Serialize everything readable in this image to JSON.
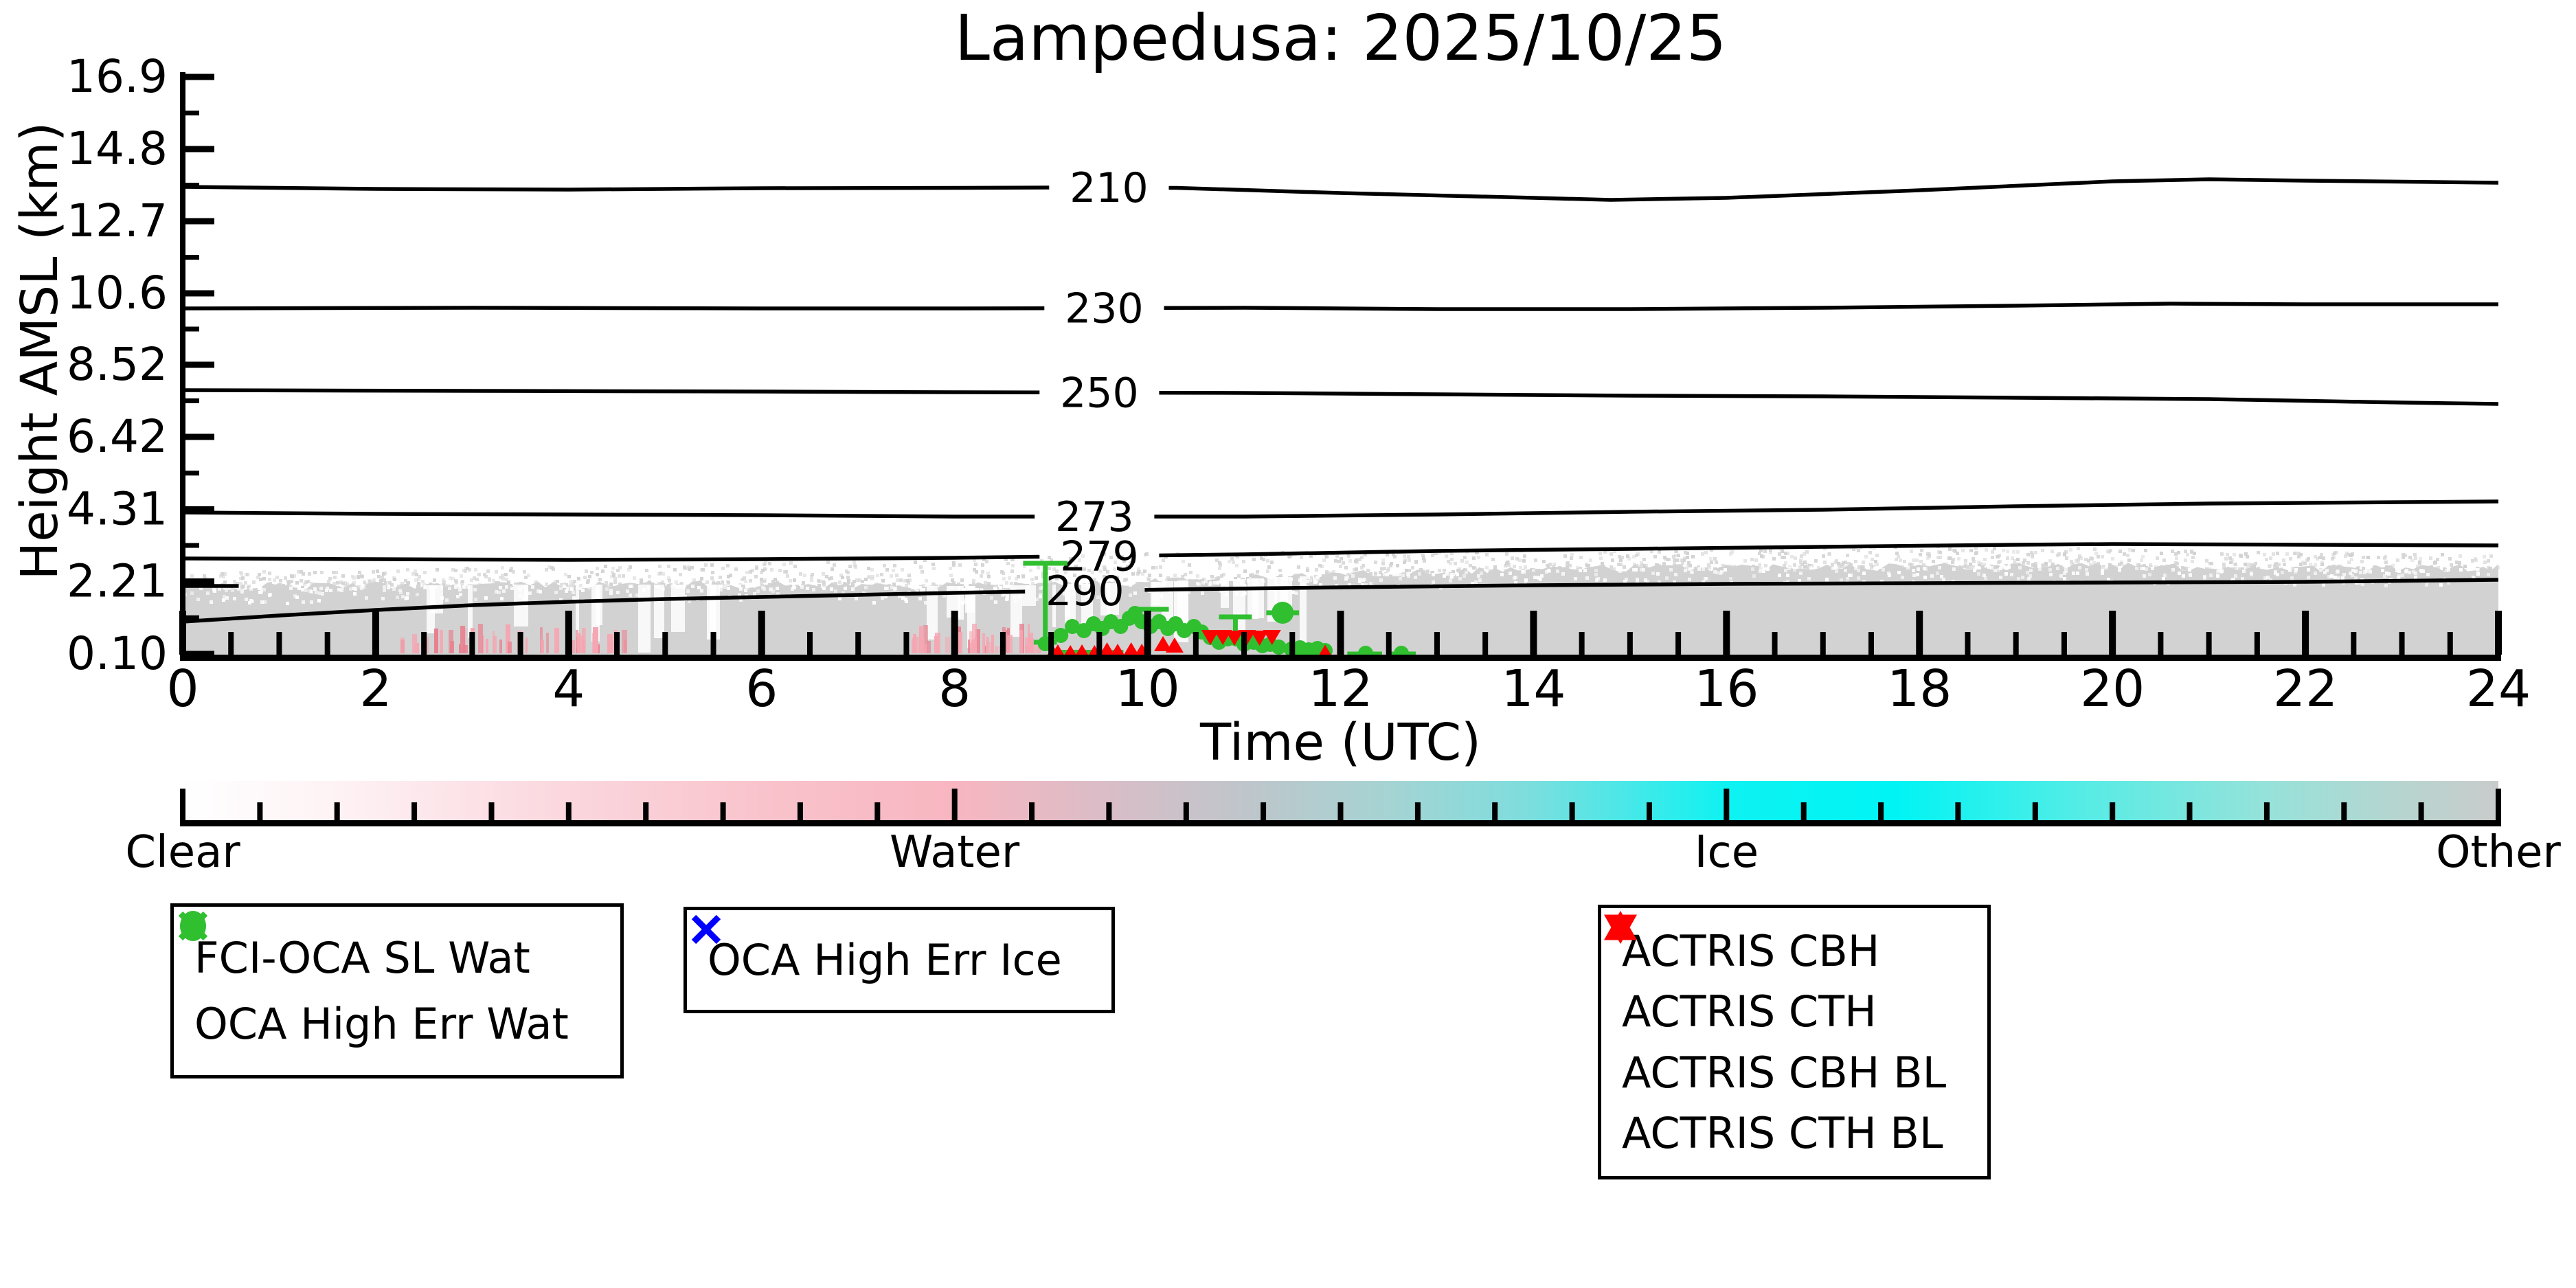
{
  "title": "Lampedusa: 2025/10/25",
  "axis": {
    "xlabel": "Time (UTC)",
    "ylabel": "Height AMSL (km)",
    "x_major_ticks": [
      0,
      2,
      4,
      6,
      8,
      10,
      12,
      14,
      16,
      18,
      20,
      22,
      24
    ],
    "x_minor_step": 0.5,
    "y_ticks": [
      {
        "label": "16.9",
        "km": 16.9
      },
      {
        "label": "14.8",
        "km": 14.8
      },
      {
        "label": "12.7",
        "km": 12.7
      },
      {
        "label": "10.6",
        "km": 10.6
      },
      {
        "label": "8.52",
        "km": 8.52
      },
      {
        "label": "6.42",
        "km": 6.42
      },
      {
        "label": "4.31",
        "km": 4.31
      },
      {
        "label": "2.21",
        "km": 2.21
      },
      {
        "label": "0.10",
        "km": 0.1
      }
    ]
  },
  "chart_data": {
    "type": "scatter",
    "title": "Lampedusa: 2025/10/25",
    "xlabel": "Time (UTC)",
    "ylabel": "Height AMSL (km)",
    "xlim": [
      0,
      24
    ],
    "ylim": [
      0.1,
      16.9
    ],
    "grid": false,
    "temperature_contours_K": [
      {
        "level": "210",
        "label_t": 9.6,
        "points": [
          [
            0,
            13.7
          ],
          [
            2,
            13.64
          ],
          [
            4,
            13.62
          ],
          [
            6,
            13.66
          ],
          [
            8,
            13.67
          ],
          [
            9.0,
            13.68
          ],
          [
            10.3,
            13.67
          ],
          [
            12,
            13.52
          ],
          [
            14,
            13.38
          ],
          [
            14.8,
            13.32
          ],
          [
            16,
            13.38
          ],
          [
            18,
            13.6
          ],
          [
            20,
            13.86
          ],
          [
            21,
            13.92
          ],
          [
            22,
            13.88
          ],
          [
            24,
            13.82
          ]
        ]
      },
      {
        "level": "230",
        "label_t": 9.55,
        "points": [
          [
            0,
            10.16
          ],
          [
            3,
            10.18
          ],
          [
            6,
            10.16
          ],
          [
            8,
            10.16
          ],
          [
            11,
            10.18
          ],
          [
            13,
            10.14
          ],
          [
            15,
            10.14
          ],
          [
            17,
            10.18
          ],
          [
            19,
            10.24
          ],
          [
            20.6,
            10.3
          ],
          [
            22,
            10.28
          ],
          [
            24,
            10.28
          ]
        ]
      },
      {
        "level": "250",
        "label_t": 9.5,
        "points": [
          [
            0,
            7.78
          ],
          [
            3,
            7.76
          ],
          [
            6,
            7.74
          ],
          [
            8,
            7.72
          ],
          [
            11,
            7.7
          ],
          [
            13,
            7.66
          ],
          [
            15,
            7.62
          ],
          [
            17,
            7.6
          ],
          [
            19,
            7.56
          ],
          [
            21,
            7.52
          ],
          [
            23,
            7.42
          ],
          [
            24,
            7.38
          ]
        ]
      },
      {
        "level": "273",
        "label_t": 9.45,
        "points": [
          [
            0,
            4.22
          ],
          [
            2,
            4.18
          ],
          [
            4,
            4.16
          ],
          [
            6,
            4.14
          ],
          [
            8,
            4.1
          ],
          [
            11,
            4.1
          ],
          [
            13,
            4.16
          ],
          [
            15,
            4.24
          ],
          [
            17,
            4.3
          ],
          [
            19,
            4.4
          ],
          [
            21,
            4.48
          ],
          [
            23,
            4.52
          ],
          [
            24,
            4.54
          ]
        ]
      },
      {
        "level": "279",
        "label_t": 9.5,
        "points": [
          [
            0,
            2.88
          ],
          [
            2,
            2.86
          ],
          [
            4,
            2.84
          ],
          [
            6,
            2.86
          ],
          [
            8,
            2.9
          ],
          [
            11,
            3.0
          ],
          [
            13,
            3.1
          ],
          [
            15,
            3.16
          ],
          [
            17,
            3.22
          ],
          [
            19,
            3.28
          ],
          [
            20,
            3.3
          ],
          [
            22,
            3.28
          ],
          [
            24,
            3.26
          ]
        ]
      },
      {
        "level": "290",
        "label_t": 9.35,
        "points": [
          [
            0,
            1.04
          ],
          [
            1,
            1.22
          ],
          [
            2,
            1.38
          ],
          [
            3,
            1.52
          ],
          [
            4,
            1.62
          ],
          [
            5,
            1.7
          ],
          [
            6,
            1.76
          ],
          [
            7,
            1.82
          ],
          [
            8,
            1.88
          ],
          [
            8.8,
            1.92
          ],
          [
            10.3,
            1.98
          ],
          [
            12,
            2.04
          ],
          [
            14,
            2.1
          ],
          [
            16,
            2.14
          ],
          [
            18,
            2.16
          ],
          [
            20,
            2.18
          ],
          [
            22,
            2.2
          ],
          [
            24,
            2.26
          ]
        ]
      },
      {
        "level": "",
        "label_t": null,
        "points": [
          [
            0,
            2.08
          ],
          [
            0.58,
            2.08
          ]
        ]
      }
    ],
    "classification_field": {
      "fill_color": "#d2d2d2",
      "water_color": "#f5a6b2",
      "solid_top_km": [
        [
          0,
          2.05
        ],
        [
          2,
          2.1
        ],
        [
          4,
          2.12
        ],
        [
          6,
          2.12
        ],
        [
          8,
          2.08
        ],
        [
          9,
          2.12
        ],
        [
          10,
          2.2
        ],
        [
          11,
          2.3
        ],
        [
          12,
          2.42
        ],
        [
          13,
          2.52
        ],
        [
          14,
          2.58
        ],
        [
          15,
          2.6
        ],
        [
          16,
          2.62
        ],
        [
          17,
          2.66
        ],
        [
          18,
          2.66
        ],
        [
          19,
          2.68
        ],
        [
          20,
          2.66
        ],
        [
          21,
          2.62
        ],
        [
          22,
          2.6
        ],
        [
          23,
          2.58
        ],
        [
          24,
          2.62
        ]
      ],
      "speckle_top_km": [
        [
          0,
          2.5
        ],
        [
          4,
          2.7
        ],
        [
          8,
          2.9
        ],
        [
          10,
          3.1
        ],
        [
          12,
          3.1
        ],
        [
          14,
          3.2
        ],
        [
          16,
          3.2
        ],
        [
          18,
          3.3
        ],
        [
          20,
          3.2
        ],
        [
          22,
          3.1
        ],
        [
          24,
          3.1
        ]
      ],
      "water_streak_ranges_t": [
        [
          2.25,
          4.6
        ],
        [
          7.55,
          8.85
        ]
      ],
      "white_streak_ranges_t": [
        [
          2.4,
          5.6
        ],
        [
          7.5,
          9.7
        ],
        [
          10.0,
          11.6
        ]
      ]
    },
    "series": [
      {
        "name": "FCI-OCA SL Wat",
        "marker": "circle-filled",
        "color": "#2fbf2f",
        "points": [
          [
            8.94,
            0.4
          ],
          [
            9.1,
            0.64
          ],
          [
            9.22,
            0.9
          ],
          [
            9.34,
            0.78
          ],
          [
            9.44,
            0.98
          ],
          [
            9.53,
            0.84
          ],
          [
            9.62,
            1.04
          ],
          [
            9.72,
            0.9
          ],
          [
            9.81,
            1.14
          ],
          [
            9.87,
            1.28
          ],
          [
            9.94,
            1.04
          ],
          [
            10.03,
            0.9
          ],
          [
            10.12,
            1.04
          ],
          [
            10.21,
            0.84
          ],
          [
            10.29,
            0.98
          ],
          [
            10.38,
            0.78
          ],
          [
            10.48,
            0.9
          ],
          [
            10.56,
            0.74
          ],
          [
            10.65,
            0.58
          ],
          [
            10.74,
            0.44
          ],
          [
            10.83,
            0.54
          ],
          [
            10.92,
            0.54
          ],
          [
            11.0,
            0.38
          ],
          [
            11.1,
            0.44
          ],
          [
            11.19,
            0.34
          ],
          [
            11.27,
            0.38
          ],
          [
            11.36,
            0.3
          ],
          [
            11.49,
            0.24
          ],
          [
            11.58,
            0.28
          ],
          [
            11.67,
            0.22
          ],
          [
            11.76,
            0.26
          ],
          [
            11.84,
            0.2
          ],
          [
            12.26,
            0.12
          ],
          [
            12.63,
            0.12
          ]
        ],
        "big_points": [
          [
            11.4,
            1.3
          ]
        ]
      },
      {
        "name": "OCA High Err Wat",
        "marker": "x",
        "color": "#2fbf2f",
        "points": []
      },
      {
        "name": "OCA High Err Ice",
        "marker": "x",
        "color": "#0000ff",
        "points": []
      },
      {
        "name": "ACTRIS CBH",
        "marker": "triangle-up-filled",
        "color": "#ff0000",
        "points": [
          [
            9.02,
            0.11
          ],
          [
            9.07,
            0.14
          ],
          [
            9.2,
            0.12
          ],
          [
            9.32,
            0.14
          ],
          [
            9.45,
            0.12
          ],
          [
            9.58,
            0.2
          ],
          [
            9.69,
            0.16
          ],
          [
            9.83,
            0.2
          ],
          [
            9.94,
            0.16
          ],
          [
            10.16,
            0.38
          ],
          [
            10.28,
            0.34
          ],
          [
            11.84,
            0.13
          ]
        ]
      },
      {
        "name": "ACTRIS CTH",
        "marker": "triangle-down-filled",
        "color": "#ff0000",
        "points": [
          [
            10.65,
            0.6
          ],
          [
            10.78,
            0.6
          ],
          [
            10.9,
            0.58
          ],
          [
            11.03,
            0.6
          ],
          [
            11.16,
            0.58
          ],
          [
            11.29,
            0.6
          ]
        ]
      },
      {
        "name": "ACTRIS CBH BL",
        "marker": "triangle-up-open",
        "color": "#ff0000",
        "points": []
      },
      {
        "name": "ACTRIS CTH BL",
        "marker": "triangle-down-open",
        "color": "#ff0000",
        "points": []
      }
    ],
    "green_error_bars": {
      "vertical": [
        {
          "t": 8.94,
          "km_from": 0.44,
          "km_to": 2.74,
          "cap_half_t": 0.23
        }
      ],
      "horizontal": [
        {
          "t": 11.4,
          "km": 1.3,
          "half_t": 0.17
        }
      ],
      "caps": [
        {
          "t": 10.04,
          "km": 1.4,
          "half_t": 0.18,
          "stem_km": null
        },
        {
          "t": 10.28,
          "km": 0.84,
          "half_t": 0.1,
          "stem_km": null
        },
        {
          "t": 10.91,
          "km": 1.18,
          "half_t": 0.17,
          "stem_km": 0.54
        }
      ],
      "strips": [
        {
          "t0": 9.05,
          "t1": 9.75,
          "km": 0.16
        },
        {
          "t0": 12.07,
          "t1": 12.43,
          "km": 0.11
        },
        {
          "t0": 12.52,
          "t1": 12.78,
          "km": 0.11
        }
      ]
    }
  },
  "colorbar": {
    "labels": [
      {
        "text": "Clear",
        "frac": 0.0
      },
      {
        "text": "Water",
        "frac": 0.3333
      },
      {
        "text": "Ice",
        "frac": 0.6667
      },
      {
        "text": "Other",
        "frac": 1.0
      }
    ],
    "minor_divisions": 30,
    "gradient": [
      [
        0.0,
        "#ffffff"
      ],
      [
        0.06,
        "#fef4f6"
      ],
      [
        0.15,
        "#fbdbe1"
      ],
      [
        0.25,
        "#f9c3cc"
      ],
      [
        0.333,
        "#f8b6c1"
      ],
      [
        0.4,
        "#d9bdc7"
      ],
      [
        0.46,
        "#bec6cb"
      ],
      [
        0.52,
        "#a6d3d3"
      ],
      [
        0.58,
        "#7edddd"
      ],
      [
        0.62,
        "#4de7e7"
      ],
      [
        0.667,
        "#0ef2f2"
      ],
      [
        0.74,
        "#00f4f4"
      ],
      [
        0.82,
        "#55ece5"
      ],
      [
        0.9,
        "#96e2da"
      ],
      [
        0.96,
        "#b8d4cf"
      ],
      [
        1.0,
        "#c9cccb"
      ]
    ]
  },
  "legend1": {
    "items": [
      {
        "label": "FCI-OCA SL Wat",
        "marker": "circle-filled",
        "color": "#2fbf2f"
      },
      {
        "label": "OCA High Err Wat",
        "marker": "x",
        "color": "#2fbf2f"
      }
    ]
  },
  "legend2": {
    "items": [
      {
        "label": "OCA High Err Ice",
        "marker": "x",
        "color": "#0000ff"
      }
    ]
  },
  "legend3": {
    "items": [
      {
        "label": "ACTRIS CBH",
        "marker": "triangle-up-filled",
        "color": "#ff0000"
      },
      {
        "label": "ACTRIS CTH",
        "marker": "triangle-down-filled",
        "color": "#ff0000"
      },
      {
        "label": "ACTRIS CBH BL",
        "marker": "triangle-up-open",
        "color": "#ff0000"
      },
      {
        "label": "ACTRIS CTH BL",
        "marker": "triangle-down-open",
        "color": "#ff0000"
      }
    ]
  },
  "colors": {
    "green": "#2fbf2f",
    "red": "#ff0000",
    "blue": "#0000ff",
    "field_gray": "#d2d2d2",
    "water_pink": "#f5a6b2",
    "axis_black": "#000000"
  }
}
